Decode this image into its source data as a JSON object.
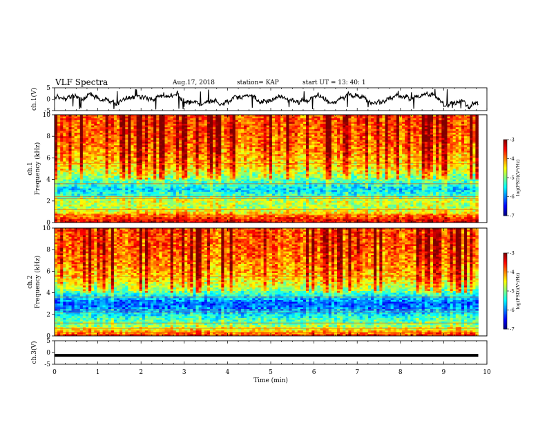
{
  "header": {
    "title": "VLF Spectra",
    "date": "Aug.17, 2018",
    "station": "station= KAP",
    "start_ut": "start  UT =   13: 40: 1"
  },
  "chart_data": [
    {
      "type": "line",
      "panel": "ch1-waveform",
      "ylabel": "ch.1(V)",
      "ylim": [
        -5,
        5
      ],
      "yticks": [
        "5",
        "0",
        "-5"
      ],
      "xlim": [
        0,
        10
      ],
      "note_series": "noisy waveform, approx -3..3 V, data ends near 9.8 min",
      "series": [
        {
          "x_end": 9.8,
          "approx_range": [
            -3,
            3
          ]
        }
      ]
    },
    {
      "type": "heatmap",
      "panel": "ch1-spectrogram",
      "ylabel": "ch.1\nFrequency (kHz)",
      "ylim": [
        0,
        10
      ],
      "yticks": [
        "0",
        "2",
        "4",
        "6",
        "8",
        "10"
      ],
      "xlim": [
        0,
        10
      ],
      "x_end": 9.8,
      "colorbar": {
        "label": "log(PSD)(V²/Hz)",
        "range": [
          -7,
          -3
        ],
        "ticks": [
          "-3",
          "-4",
          "-5",
          "-6",
          "-7"
        ]
      },
      "bands_khz_to_level": [
        [
          0.0,
          -3.4
        ],
        [
          0.5,
          -3.8
        ],
        [
          1.0,
          -4.6
        ],
        [
          1.5,
          -4.9
        ],
        [
          2.0,
          -4.7
        ],
        [
          2.5,
          -5.3
        ],
        [
          3.0,
          -5.7
        ],
        [
          3.5,
          -5.4
        ],
        [
          4.0,
          -5.1
        ],
        [
          4.5,
          -4.8
        ],
        [
          5.0,
          -4.5
        ],
        [
          6.0,
          -4.2
        ],
        [
          7.0,
          -4.0
        ],
        [
          8.0,
          -3.9
        ],
        [
          10.0,
          -3.8
        ]
      ]
    },
    {
      "type": "heatmap",
      "panel": "ch2-spectrogram",
      "ylabel": "ch.2\nFrequency (kHz)",
      "ylim": [
        0,
        10
      ],
      "yticks": [
        "0",
        "2",
        "4",
        "6",
        "8",
        "10"
      ],
      "xlim": [
        0,
        10
      ],
      "x_end": 9.8,
      "colorbar": {
        "label": "log(PSD)(V²/Hz)",
        "range": [
          -7,
          -3
        ],
        "ticks": [
          "-3",
          "-4",
          "-5",
          "-6",
          "-7"
        ]
      },
      "bands_khz_to_level": [
        [
          0.0,
          -3.6
        ],
        [
          0.5,
          -4.4
        ],
        [
          1.0,
          -5.0
        ],
        [
          1.5,
          -5.3
        ],
        [
          2.0,
          -5.6
        ],
        [
          2.5,
          -6.0
        ],
        [
          3.0,
          -6.2
        ],
        [
          3.5,
          -5.8
        ],
        [
          4.0,
          -5.2
        ],
        [
          4.5,
          -4.8
        ],
        [
          5.0,
          -4.5
        ],
        [
          6.0,
          -4.2
        ],
        [
          7.0,
          -4.0
        ],
        [
          8.0,
          -3.9
        ],
        [
          10.0,
          -3.8
        ]
      ]
    },
    {
      "type": "line",
      "panel": "ch3-waveform",
      "ylabel": "ch.3(V)",
      "ylim": [
        -5,
        5
      ],
      "yticks": [
        "5",
        "0",
        "-5"
      ],
      "xlim": [
        0,
        10
      ],
      "xlabel": "Time (min)",
      "xticks": [
        "0",
        "1",
        "2",
        "3",
        "4",
        "5",
        "6",
        "7",
        "8",
        "9",
        "10"
      ],
      "series": [
        {
          "x_end": 9.8,
          "constant_value": -1.2
        }
      ]
    }
  ]
}
